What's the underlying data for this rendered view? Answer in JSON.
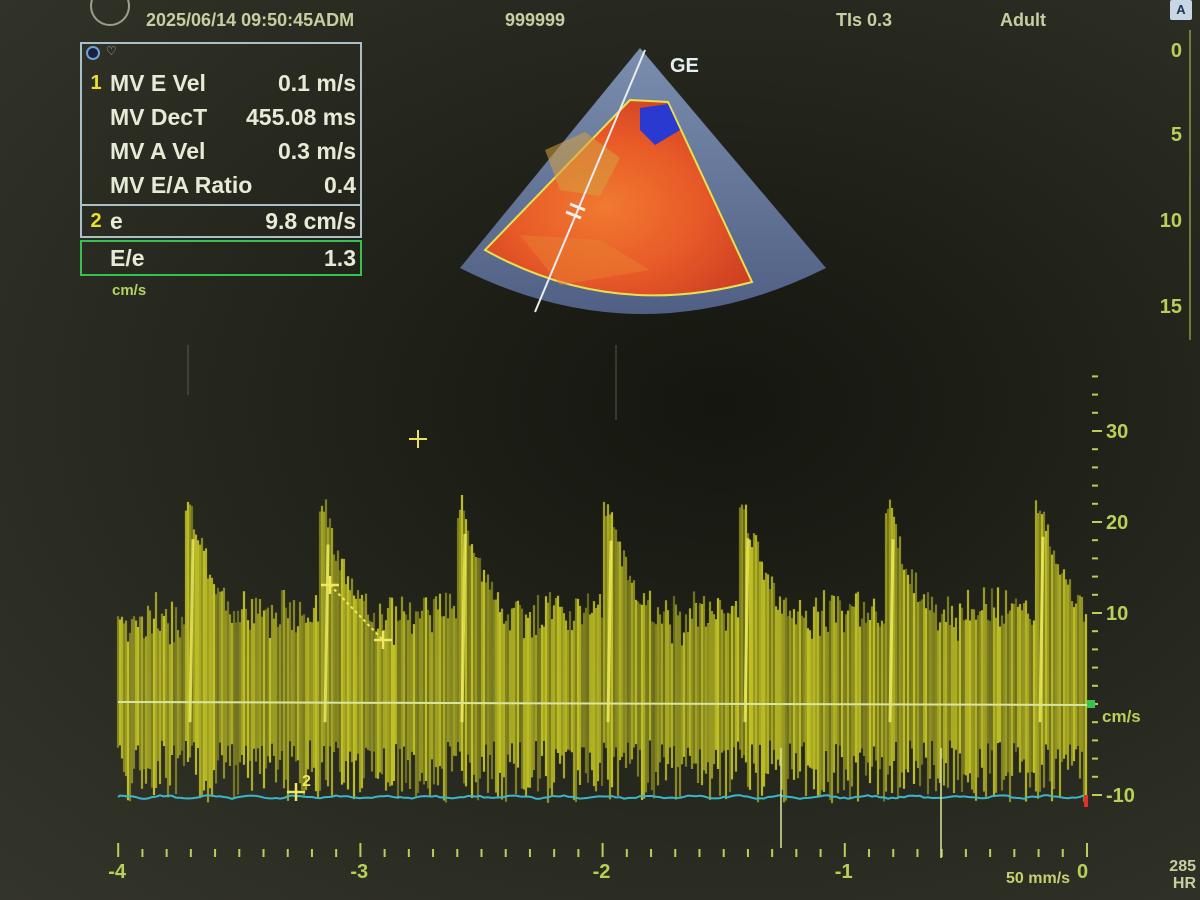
{
  "header": {
    "datetime": "2025/06/14 09:50:45ADM",
    "patient_id": "999999",
    "tis": "TIs 0.3",
    "mode": "Adult",
    "logo_letter": "A",
    "probe_label": "GE"
  },
  "measurements": {
    "group1_index": "1",
    "group1": [
      {
        "label": "MV E Vel",
        "value": "0.1 m/s"
      },
      {
        "label": "MV DecT",
        "value": "455.08 ms"
      },
      {
        "label": "MV A Vel",
        "value": "0.3 m/s"
      },
      {
        "label": "MV E/A Ratio",
        "value": "0.4"
      }
    ],
    "group2_index": "2",
    "group2": {
      "label": "e",
      "value": "9.8 cm/s"
    },
    "ratio": {
      "label": "E/e",
      "value": "1.3"
    },
    "unit": "cm/s"
  },
  "depth_scale": [
    "0",
    "5",
    "10",
    "15"
  ],
  "velocity_scale": {
    "labels": [
      "30",
      "20",
      "10",
      "-10"
    ],
    "unit": "cm/s"
  },
  "time_axis": {
    "labels": [
      "-4",
      "-3",
      "-2",
      "-1",
      "0"
    ],
    "sweep_speed": "50 mm/s"
  },
  "heart_rate": {
    "value": "285",
    "label": "HR"
  },
  "markers": {
    "point2": "2"
  },
  "colors": {
    "doppler": "#e6e626",
    "baseline": "#d8e6a0",
    "ecg": "#3ab6c8",
    "scale": "#b8d058",
    "panel_border": "#aac0c8",
    "ratio_border": "#38c050"
  }
}
